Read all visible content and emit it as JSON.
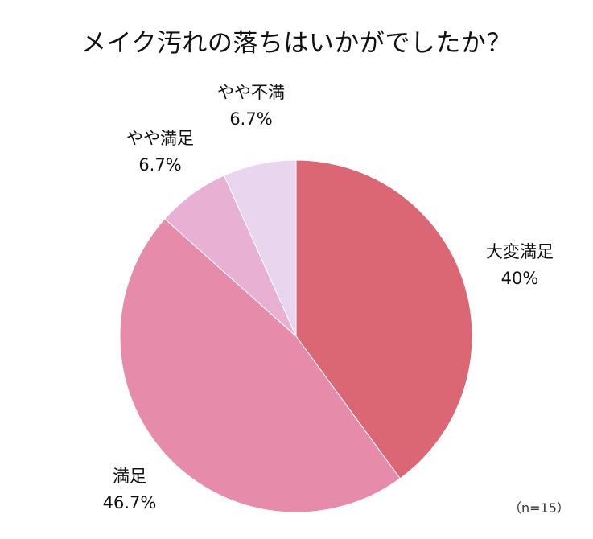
{
  "chart_data": {
    "type": "pie",
    "title": "メイク汚れの落ちはいかがでしたか？",
    "start_angle_deg": 0,
    "direction": "clockwise",
    "slices": [
      {
        "label": "大変満足",
        "percent_text": "40%",
        "value": 40.0,
        "color": "#db6774"
      },
      {
        "label": "満足",
        "percent_text": "46.7%",
        "value": 46.7,
        "color": "#e78baa"
      },
      {
        "label": "やや満足",
        "percent_text": "6.7%",
        "value": 6.7,
        "color": "#e8b1d3"
      },
      {
        "label": "やや不満",
        "percent_text": "6.7%",
        "value": 6.7,
        "color": "#ead5ef"
      }
    ],
    "note": "（n=15）"
  }
}
